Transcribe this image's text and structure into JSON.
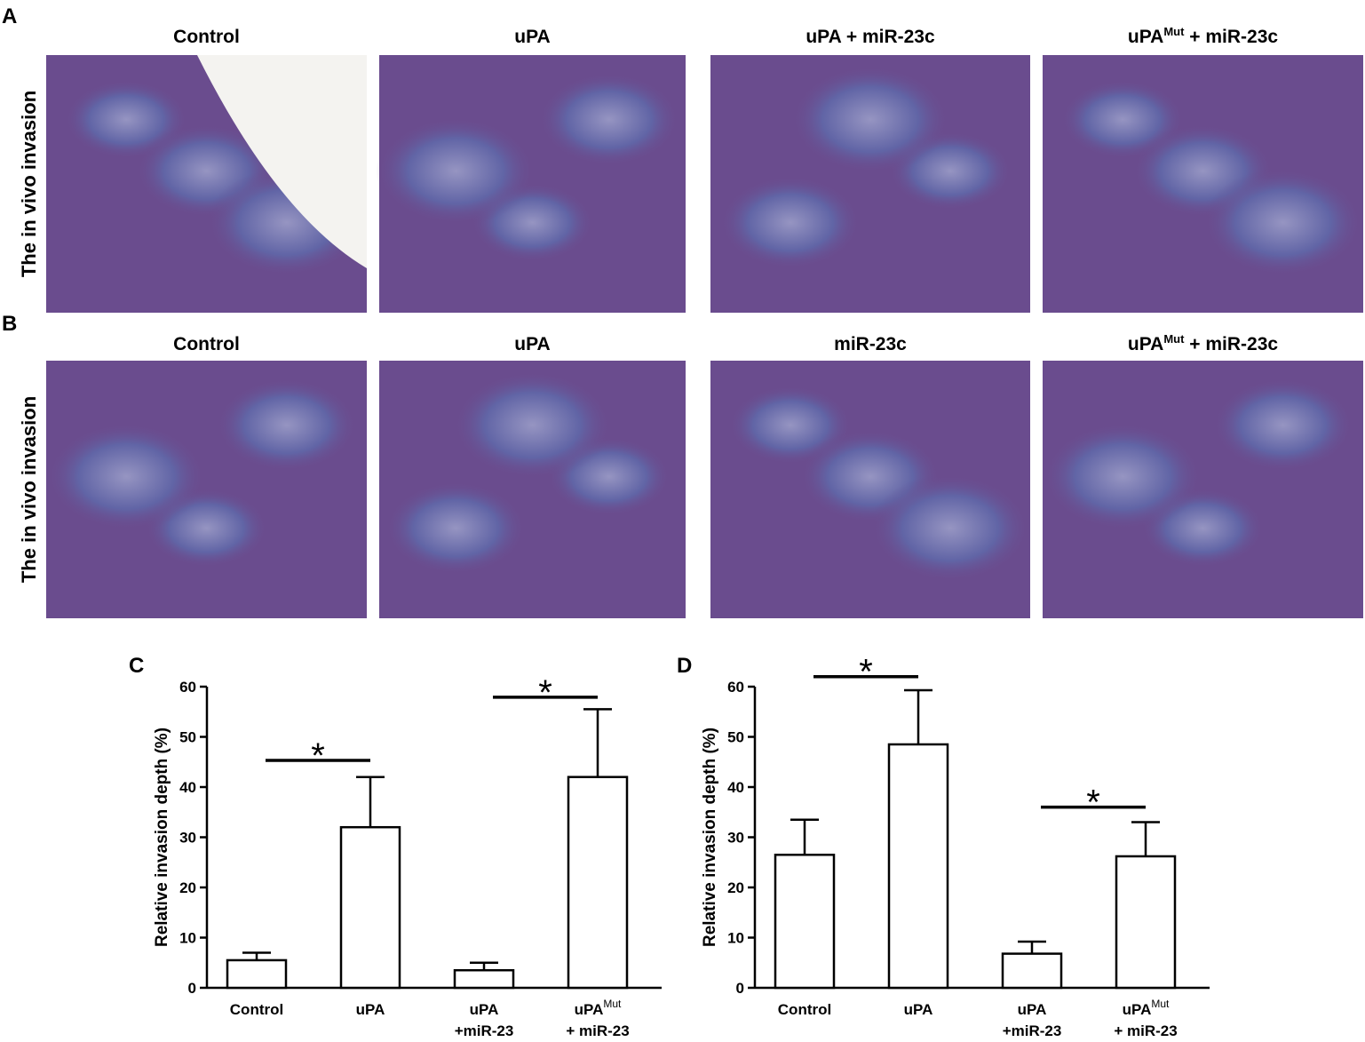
{
  "panels": [
    {
      "letter": "A",
      "y_label": "The in vivo invasion",
      "titles": [
        {
          "text": "Control",
          "sup": null,
          "rest": null
        },
        {
          "text": "uPA",
          "sup": null,
          "rest": null
        },
        {
          "text": "uPA + miR-23c",
          "sup": null,
          "rest": null
        },
        {
          "text": "uPA",
          "sup": "Mut",
          "rest": " + miR-23c"
        }
      ]
    },
    {
      "letter": "B",
      "y_label": "The in vivo invasion",
      "titles": [
        {
          "text": "Control",
          "sup": null,
          "rest": null
        },
        {
          "text": "uPA",
          "sup": null,
          "rest": null
        },
        {
          "text": "miR-23c",
          "sup": null,
          "rest": null
        },
        {
          "text": "uPA",
          "sup": "Mut",
          "rest": " + miR-23c"
        }
      ]
    }
  ],
  "chart_data": [
    {
      "type": "bar",
      "letter": "C",
      "y_label": "Relative invasion depth (%)",
      "categories": [
        "Control",
        "uPA",
        "uPA",
        "uPA"
      ],
      "category_superscripts": [
        null,
        null,
        null,
        "Mut"
      ],
      "category_lines2": [
        null,
        null,
        "+miR-23",
        "+ miR-23"
      ],
      "values": [
        5.5,
        32,
        3.5,
        42
      ],
      "errors": [
        1.5,
        10,
        1.5,
        13.5
      ],
      "ylim": [
        0,
        60
      ],
      "yticks": [
        0,
        10,
        20,
        30,
        40,
        50,
        60
      ],
      "annotations": [
        {
          "text": "*",
          "x": [
            0,
            1
          ],
          "y": 45.3
        },
        {
          "text": "*",
          "x": [
            2,
            3
          ],
          "y": 57.9
        }
      ]
    },
    {
      "type": "bar",
      "letter": "D",
      "y_label": "Relative invasion depth (%)",
      "categories": [
        "Control",
        "uPA",
        "uPA",
        "uPA"
      ],
      "category_superscripts": [
        null,
        null,
        null,
        "Mut"
      ],
      "category_lines2": [
        null,
        null,
        "+miR-23",
        "+ miR-23"
      ],
      "values": [
        26.5,
        48.5,
        6.8,
        26.2
      ],
      "errors": [
        7,
        10.8,
        2.4,
        6.8
      ],
      "ylim": [
        0,
        60
      ],
      "yticks": [
        0,
        10,
        20,
        30,
        40,
        50,
        60
      ],
      "annotations": [
        {
          "text": "*",
          "x": [
            0,
            1
          ],
          "y": 62
        },
        {
          "text": "*",
          "x": [
            2,
            3
          ],
          "y": 36
        }
      ]
    }
  ]
}
